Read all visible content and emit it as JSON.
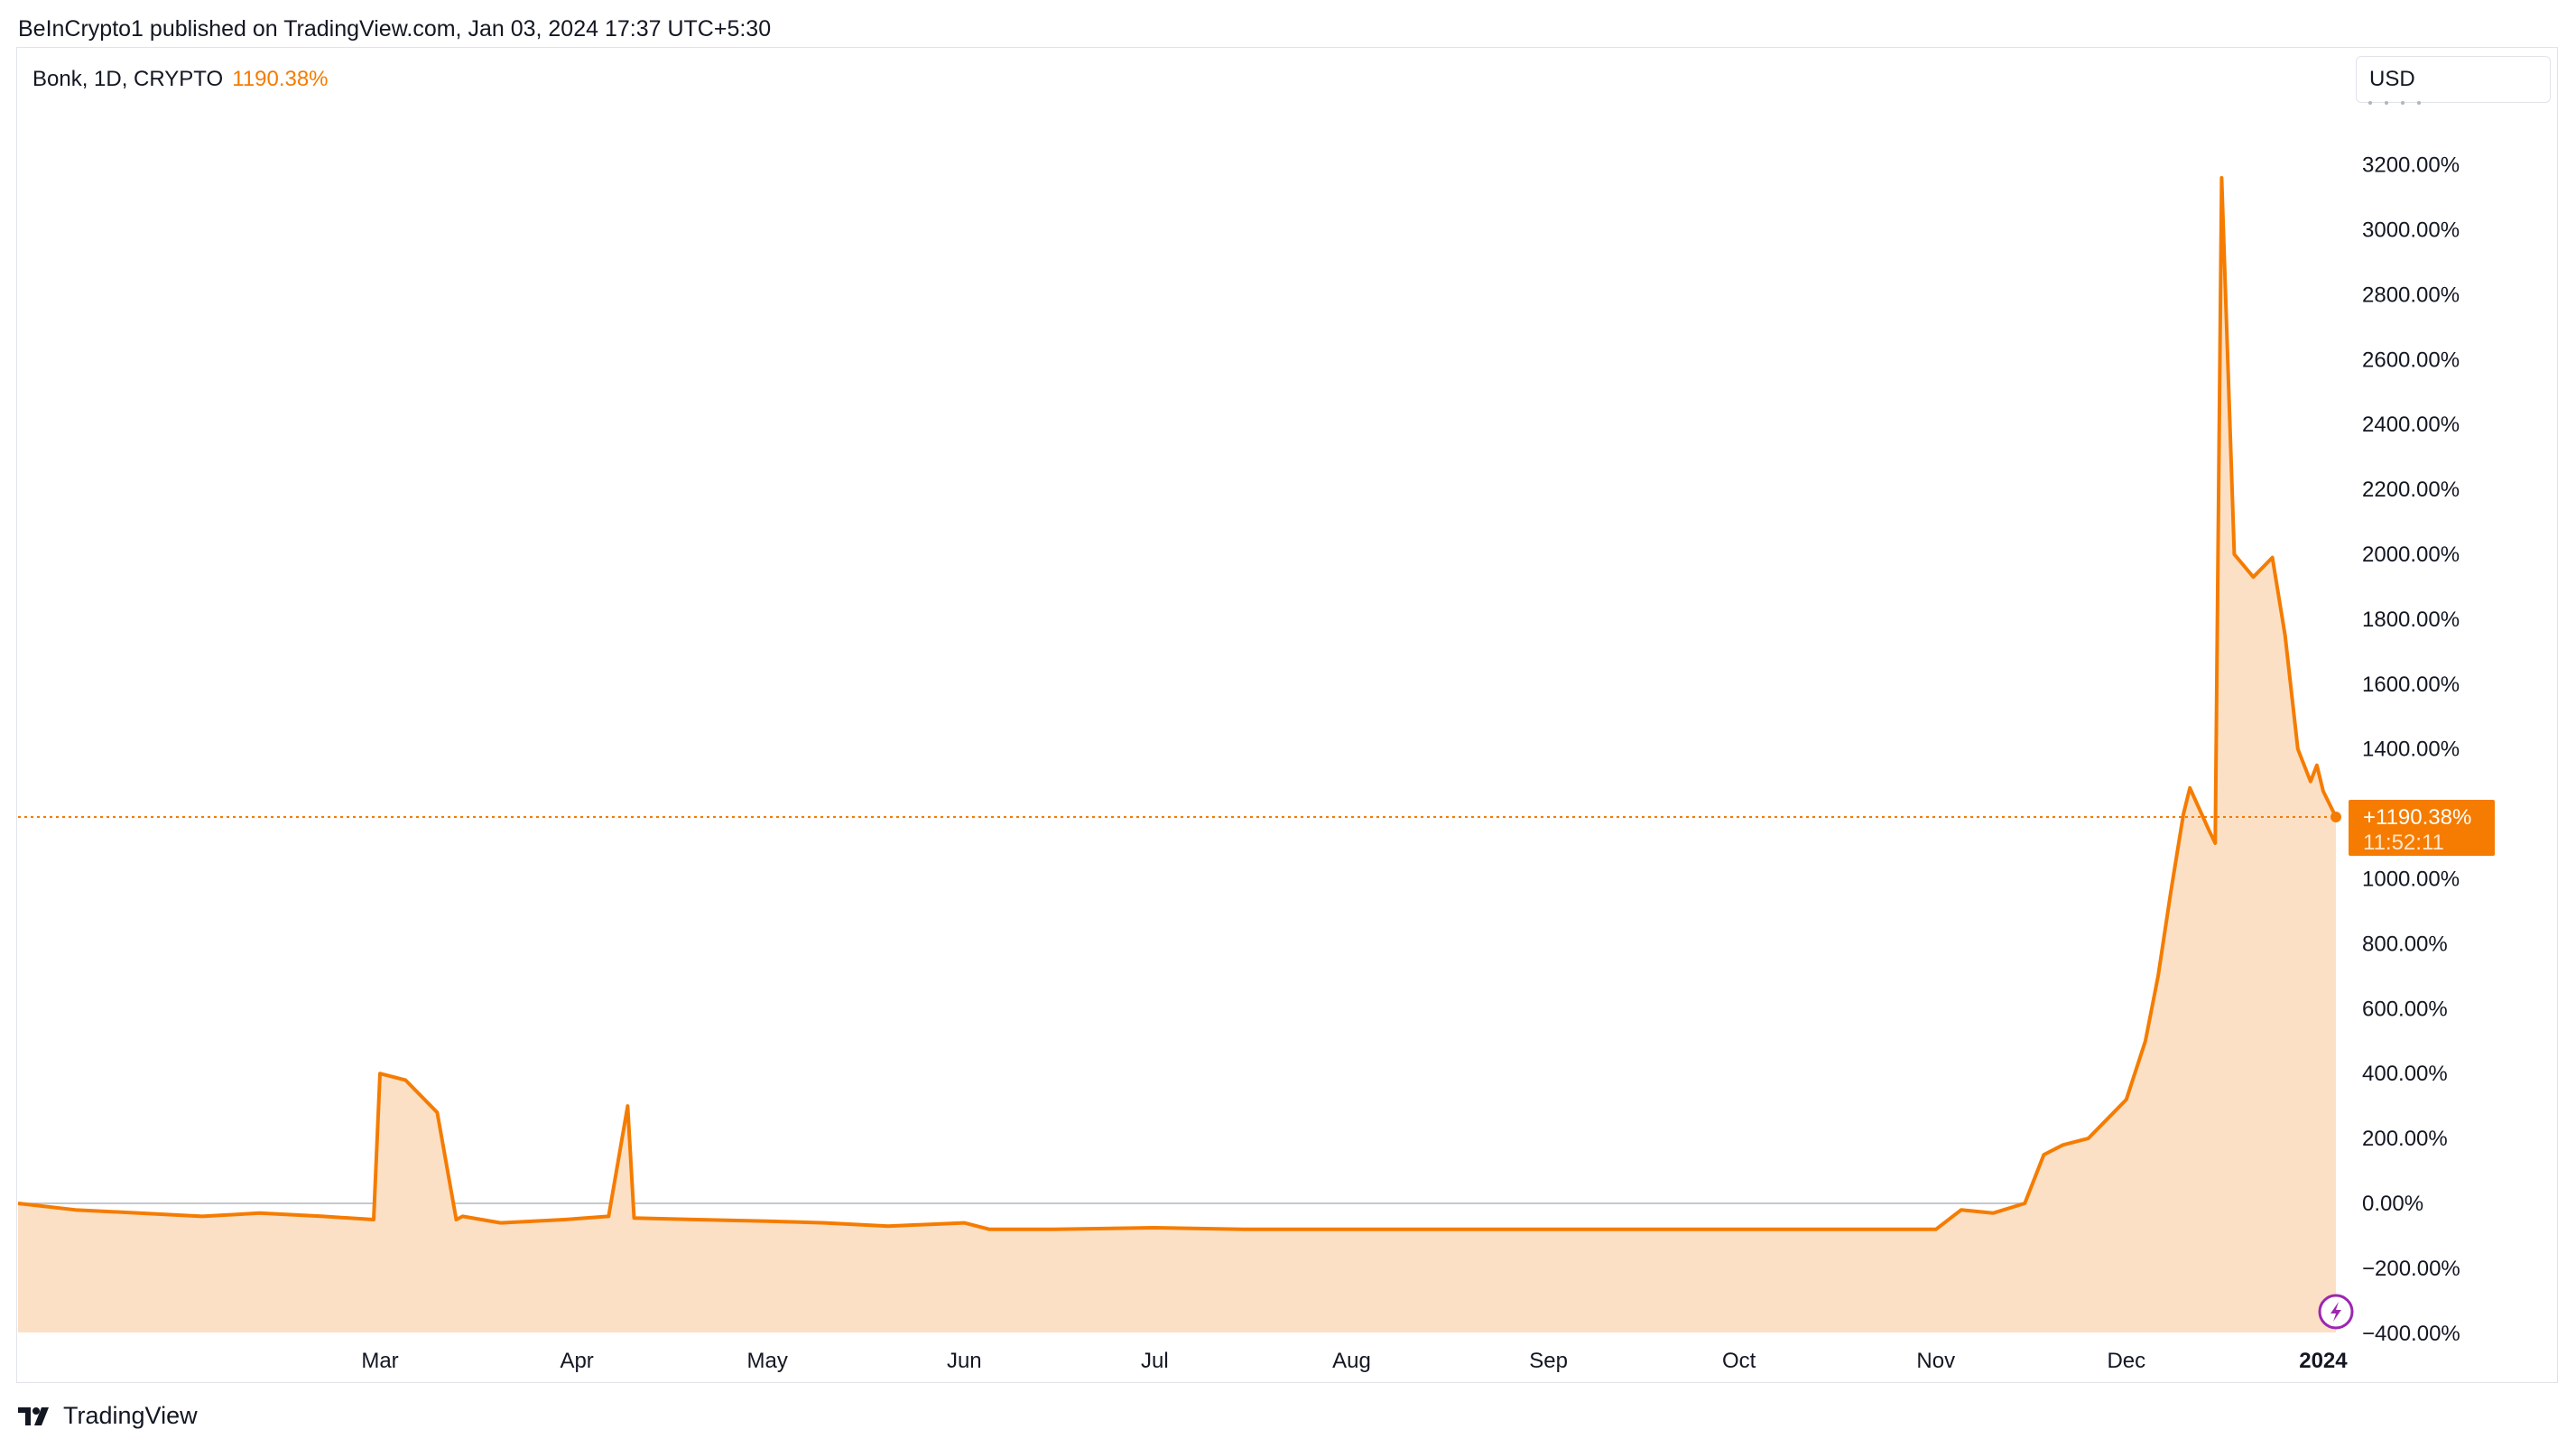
{
  "header": {
    "published": "BeInCrypto1 published on TradingView.com, Jan 03, 2024 17:37 UTC+5:30"
  },
  "legend": {
    "symbol": "Bonk, 1D, CRYPTO",
    "change": "1190.38%"
  },
  "currency_button": "USD",
  "footer": {
    "brand": "TradingView"
  },
  "price_label": {
    "value": "+1190.38%",
    "countdown": "11:52:11"
  },
  "colors": {
    "line": "#f57c00",
    "fill": "#fce0c5",
    "label_bg": "#f57c00",
    "zero_line": "#b2b5be"
  },
  "icons": {
    "flash": "lightning-bolt-icon",
    "brand": "tradingview-logo-icon"
  },
  "chart_data": {
    "type": "area",
    "series": [
      {
        "name": "Bonk",
        "x": [
          "2023-01-03",
          "2023-01-12",
          "2023-01-22",
          "2023-02-01",
          "2023-02-10",
          "2023-02-20",
          "2023-02-28",
          "2023-03-01",
          "2023-03-05",
          "2023-03-10",
          "2023-03-13",
          "2023-03-14",
          "2023-03-20",
          "2023-03-30",
          "2023-04-06",
          "2023-04-09",
          "2023-04-10",
          "2023-04-20",
          "2023-05-01",
          "2023-05-10",
          "2023-05-20",
          "2023-06-01",
          "2023-06-05",
          "2023-06-15",
          "2023-07-01",
          "2023-07-15",
          "2023-08-01",
          "2023-08-15",
          "2023-09-01",
          "2023-09-15",
          "2023-10-01",
          "2023-10-15",
          "2023-10-25",
          "2023-11-01",
          "2023-11-05",
          "2023-11-10",
          "2023-11-15",
          "2023-11-18",
          "2023-11-21",
          "2023-11-25",
          "2023-11-30",
          "2023-12-01",
          "2023-12-04",
          "2023-12-06",
          "2023-12-08",
          "2023-12-10",
          "2023-12-11",
          "2023-12-14",
          "2023-12-15",
          "2023-12-16",
          "2023-12-18",
          "2023-12-21",
          "2023-12-24",
          "2023-12-26",
          "2023-12-28",
          "2023-12-30",
          "2023-12-31",
          "2024-01-01",
          "2024-01-03"
        ],
        "values": [
          0,
          -20,
          -30,
          -40,
          -30,
          -40,
          -50,
          400,
          380,
          280,
          -50,
          -40,
          -60,
          -50,
          -40,
          300,
          -45,
          -50,
          -55,
          -60,
          -70,
          -60,
          -80,
          -80,
          -75,
          -80,
          -80,
          -80,
          -80,
          -80,
          -80,
          -80,
          -80,
          -80,
          -20,
          -30,
          0,
          150,
          180,
          200,
          300,
          320,
          500,
          700,
          960,
          1200,
          1280,
          1150,
          1110,
          3160,
          2000,
          1930,
          1990,
          1750,
          1400,
          1300,
          1350,
          1270,
          1190.38
        ]
      }
    ],
    "yticks": [
      "3200.00%",
      "3000.00%",
      "2800.00%",
      "2600.00%",
      "2400.00%",
      "2200.00%",
      "2000.00%",
      "1800.00%",
      "1600.00%",
      "1400.00%",
      "1000.00%",
      "800.00%",
      "600.00%",
      "400.00%",
      "200.00%",
      "0.00%",
      "−200.00%",
      "−400.00%"
    ],
    "xticks": [
      "Mar",
      "Apr",
      "May",
      "Jun",
      "Jul",
      "Aug",
      "Sep",
      "Oct",
      "Nov",
      "Dec",
      "2024"
    ],
    "ylim": [
      -400,
      3200
    ],
    "last_value": 1190.38
  }
}
